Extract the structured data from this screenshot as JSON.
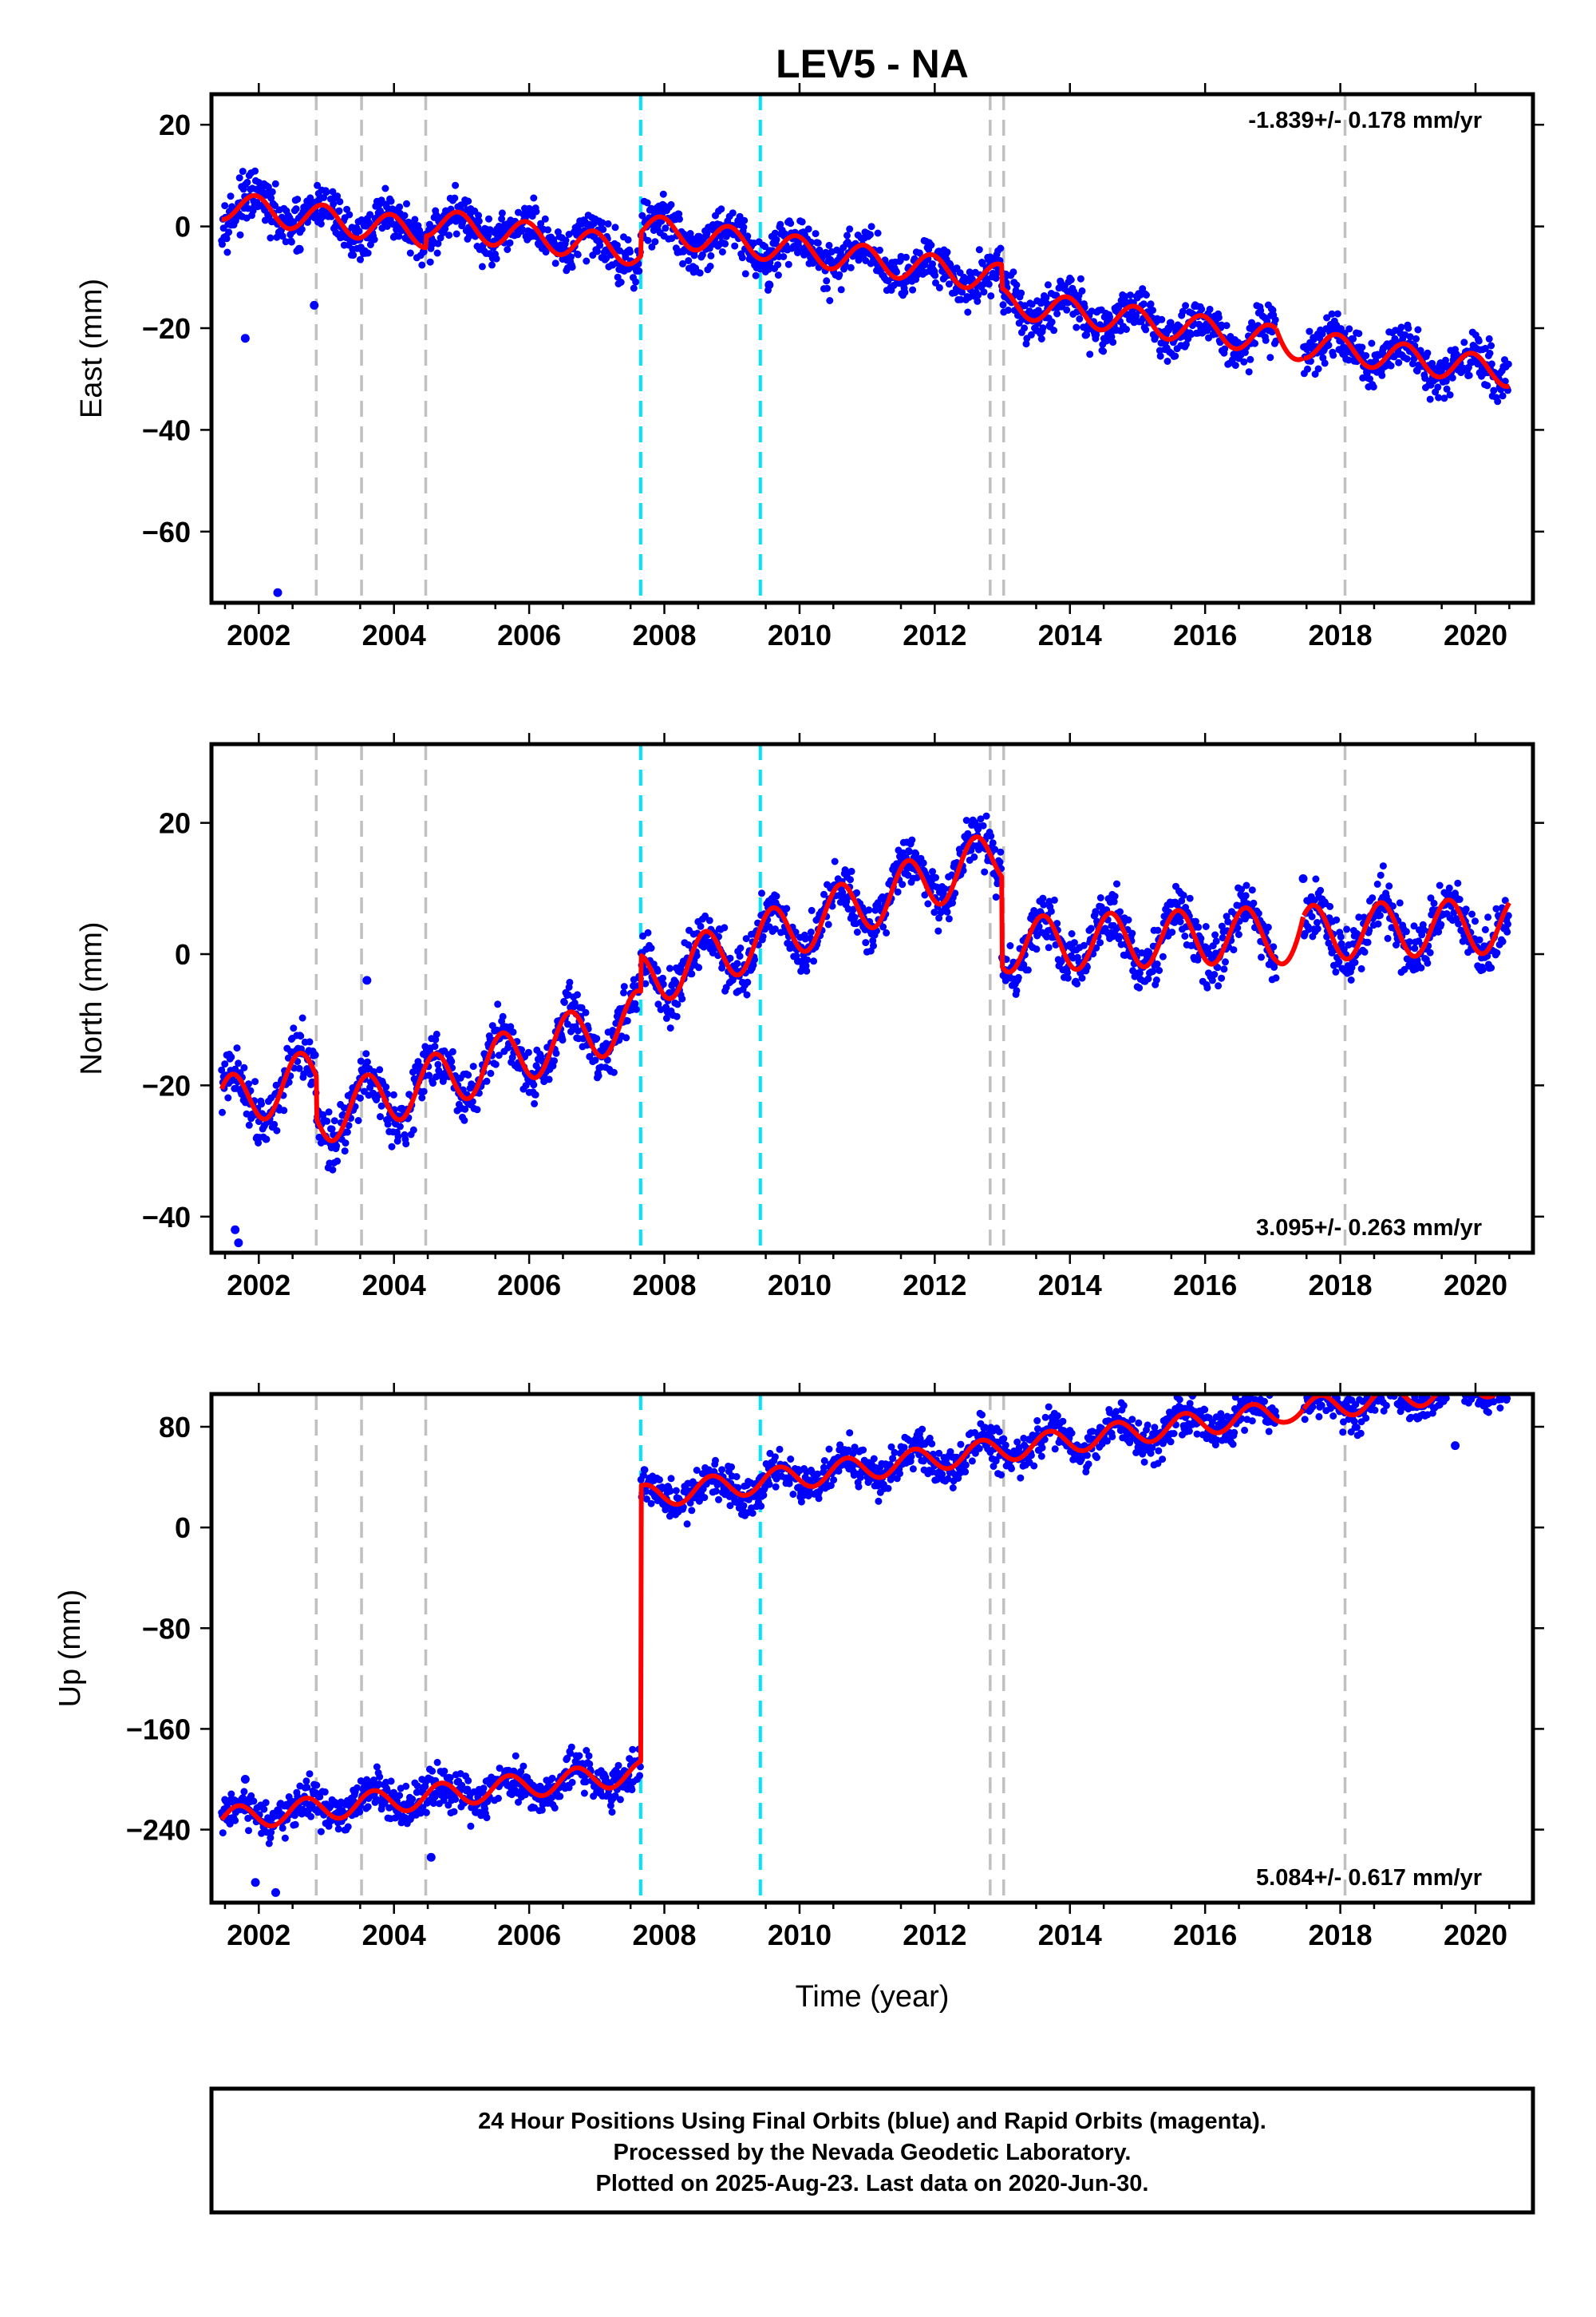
{
  "chart_data": {
    "title": "LEV5 - NA",
    "x_label": "Time (year)",
    "x_range": [
      2001.3,
      2020.85
    ],
    "x_ticks": [
      2002,
      2004,
      2006,
      2008,
      2010,
      2012,
      2014,
      2016,
      2018,
      2020
    ],
    "event_lines": [
      {
        "year": 2002.85,
        "color": "#c0c0c0"
      },
      {
        "year": 2003.52,
        "color": "#c0c0c0"
      },
      {
        "year": 2004.47,
        "color": "#c0c0c0"
      },
      {
        "year": 2007.65,
        "color": "#00e5ff"
      },
      {
        "year": 2009.42,
        "color": "#00e5ff"
      },
      {
        "year": 2012.82,
        "color": "#c0c0c0"
      },
      {
        "year": 2013.02,
        "color": "#c0c0c0"
      },
      {
        "year": 2018.07,
        "color": "#c0c0c0"
      }
    ],
    "colors": {
      "observations": "#0000ff",
      "model": "#ff0000"
    },
    "panels": [
      {
        "id": "east",
        "type": "scatter",
        "ylabel": "East (mm)",
        "ylim": [
          -74,
          26
        ],
        "yticks": [
          20,
          0,
          -20,
          -40,
          -60
        ],
        "rate": "-1.839+/- 0.178 mm/yr",
        "rate_position": "top-right",
        "outliers": [
          [
            2001.8,
            -22
          ],
          [
            2002.28,
            -72
          ],
          [
            2002.6,
            -4.5
          ],
          [
            2002.82,
            -15.5
          ],
          [
            2003.6,
            0.5
          ],
          [
            2009.55,
            -11.5
          ]
        ],
        "model": {
          "segments": [
            {
              "start": 2001.45,
              "end": 2004.47,
              "a": 4.2,
              "b": -1.85
            },
            {
              "start": 2004.47,
              "end": 2007.65,
              "a": 6.5,
              "b": -1.85
            },
            {
              "start": 2007.65,
              "end": 2012.99,
              "a": 11.1,
              "b": -1.85
            },
            {
              "start": 2012.99,
              "end": 2020.5,
              "a": 6.5,
              "b": -1.85
            }
          ],
          "amp": 2.8,
          "phase": 0.3,
          "gaps": [
            [
              2017.05,
              2017.45
            ]
          ]
        },
        "noise": 2.3
      },
      {
        "id": "north",
        "type": "scatter",
        "ylabel": "North (mm)",
        "ylim": [
          -45.5,
          32
        ],
        "yticks": [
          20,
          0,
          -20,
          -40
        ],
        "rate": "3.095+/- 0.263 mm/yr",
        "rate_position": "bottom-right",
        "outliers": [
          [
            2001.65,
            -42
          ],
          [
            2001.7,
            -44
          ],
          [
            2003.6,
            -4
          ],
          [
            2017.45,
            11.5
          ]
        ],
        "model": {
          "segments": [
            {
              "start": 2001.45,
              "end": 2002.85,
              "a": -23.0,
              "b": 3.2
            },
            {
              "start": 2002.85,
              "end": 2007.65,
              "a": -29.5,
              "b": 3.2
            },
            {
              "start": 2007.65,
              "end": 2012.99,
              "a": -26.5,
              "b": 3.6
            },
            {
              "start": 2012.99,
              "end": 2020.5,
              "a": -3.2,
              "b": 0.4
            }
          ],
          "amp": 4.2,
          "phase": 0.65,
          "gaps": [
            [
              2017.05,
              2017.45
            ]
          ]
        },
        "noise": 2.0
      },
      {
        "id": "up",
        "type": "scatter",
        "ylabel": "Up (mm)",
        "ylim": [
          -298,
          106
        ],
        "yticks": [
          80,
          0,
          -80,
          -160,
          -240
        ],
        "rate": "5.084+/- 0.617 mm/yr",
        "rate_position": "bottom-right",
        "outliers": [
          [
            2001.8,
            -200
          ],
          [
            2001.95,
            -282
          ],
          [
            2002.25,
            -290
          ],
          [
            2004.55,
            -262
          ],
          [
            2019.7,
            65
          ]
        ],
        "model": {
          "segments": [
            {
              "start": 2001.45,
              "end": 2007.65,
              "a": -232.0,
              "b": 6.0
            },
            {
              "start": 2007.65,
              "end": 2020.5,
              "a": -20.0,
              "b": 7.1
            }
          ],
          "amp": 9.5,
          "phase": 0.55,
          "gaps": [
            [
              2017.05,
              2017.45
            ]
          ]
        },
        "noise": 8.0
      }
    ]
  },
  "footer": {
    "lines": [
      "24 Hour Positions Using Final Orbits (blue) and Rapid Orbits (magenta).",
      "Processed by the Nevada Geodetic Laboratory.",
      "Plotted on 2025-Aug-23. Last data on 2020-Jun-30."
    ]
  }
}
